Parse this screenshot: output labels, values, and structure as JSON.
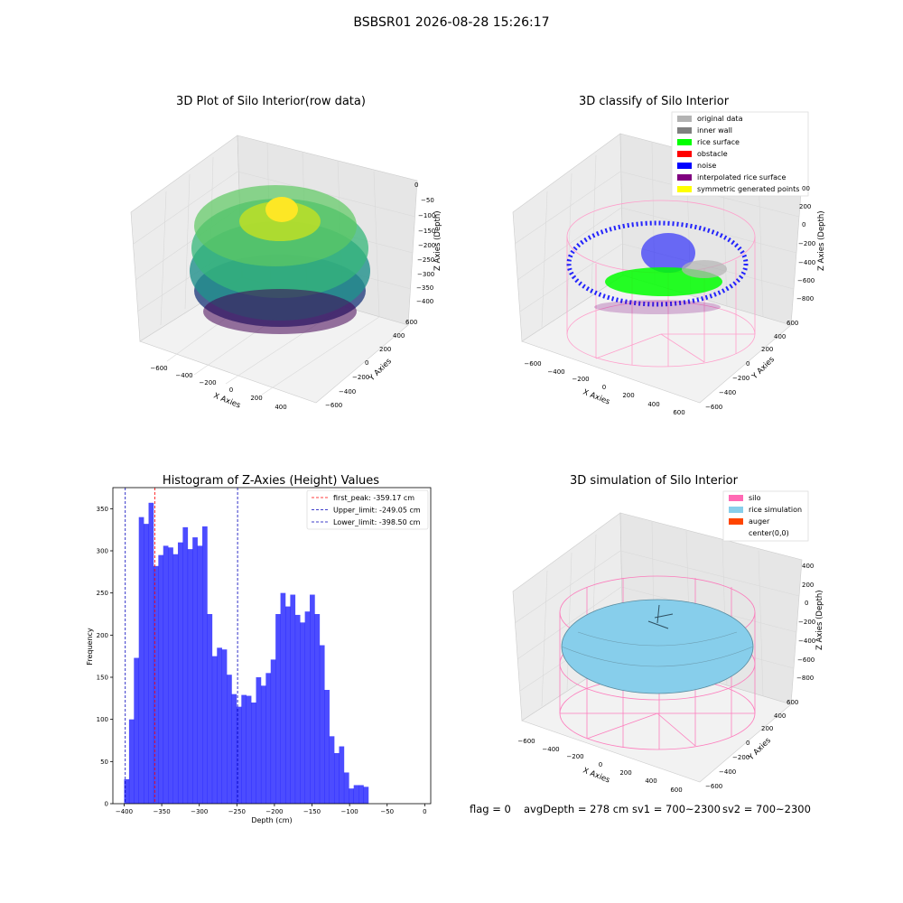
{
  "suptitle": "BSBSR01 2026-08-28 15:26:17",
  "panels": {
    "raw": {
      "title": "3D Plot of Silo Interior(row data)",
      "xlabel": "X Axies",
      "ylabel": "Y Axies",
      "zlabel": "Z Axies (Depth)",
      "xticks": [
        "−600",
        "−400",
        "−200",
        "0",
        "200",
        "400"
      ],
      "yticks": [
        "−600",
        "−400",
        "−200",
        "0",
        "200",
        "400",
        "600"
      ],
      "zticks": [
        "0",
        "−50",
        "−100",
        "−150",
        "−200",
        "−250",
        "−300",
        "−350",
        "−400"
      ]
    },
    "classify": {
      "title": "3D classify of Silo Interior",
      "xlabel": "X Axies",
      "ylabel": "Y Axies",
      "zlabel": "Z Axies (Depth)",
      "xticks": [
        "−600",
        "−400",
        "−200",
        "0",
        "200",
        "400",
        "600"
      ],
      "yticks": [
        "−600",
        "−400",
        "−200",
        "0",
        "200",
        "400",
        "600"
      ],
      "zticks": [
        "200",
        "0",
        "−200",
        "−400",
        "−600",
        "−800"
      ],
      "ztick_partial": "00",
      "legend": [
        {
          "label": "original data",
          "color": "#b3b3b3"
        },
        {
          "label": "inner wall",
          "color": "#808080"
        },
        {
          "label": "rice surface",
          "color": "#00ff00"
        },
        {
          "label": "obstacle",
          "color": "#ff0000"
        },
        {
          "label": "noise",
          "color": "#0000ff"
        },
        {
          "label": "interpolated rice surface",
          "color": "#800080"
        },
        {
          "label": "symmetric generated points",
          "color": "#ffff00"
        }
      ]
    },
    "simulation": {
      "title": "3D simulation of Silo Interior",
      "xlabel": "X Axies",
      "ylabel": "Y Axies",
      "zlabel": "Z Axies (Depth)",
      "xticks": [
        "−600",
        "−400",
        "−200",
        "0",
        "200",
        "400",
        "600"
      ],
      "yticks": [
        "−600",
        "−400",
        "−200",
        "0",
        "200",
        "400",
        "600"
      ],
      "zticks": [
        "400",
        "200",
        "0",
        "−200",
        "−400",
        "−600",
        "−800"
      ],
      "legend": [
        {
          "label": "silo",
          "color": "#ff69b4"
        },
        {
          "label": "rice simulation",
          "color": "#87ceeb"
        },
        {
          "label": "auger",
          "color": "#ff4500"
        },
        {
          "label": "center(0,0)",
          "color": ""
        }
      ]
    }
  },
  "status": {
    "flag": "flag = 0",
    "avg": "avgDepth = 278 cm",
    "sv1": "sv1 = 700~2300",
    "sv2": "sv2 = 700~2300"
  },
  "chart_data": {
    "type": "bar",
    "title": "Histogram of Z-Axies (Height) Values",
    "xlabel": "Depth (cm)",
    "ylabel": "Frequency",
    "xlim": [
      -415,
      8
    ],
    "ylim": [
      0,
      375
    ],
    "xticks": [
      -400,
      -350,
      -300,
      -250,
      -200,
      -150,
      -100,
      -50,
      0
    ],
    "xticklabels": [
      "−400",
      "−350",
      "−300",
      "−250",
      "−200",
      "−150",
      "−100",
      "−50",
      "0"
    ],
    "yticks": [
      0,
      50,
      100,
      150,
      200,
      250,
      300,
      350
    ],
    "bin_start": -400,
    "bin_width": 6.5,
    "values": [
      29,
      100,
      173,
      340,
      332,
      357,
      282,
      295,
      306,
      304,
      296,
      310,
      328,
      302,
      316,
      306,
      329,
      225,
      175,
      185,
      183,
      153,
      130,
      115,
      129,
      128,
      120,
      150,
      140,
      155,
      171,
      225,
      250,
      234,
      248,
      224,
      215,
      228,
      248,
      225,
      188,
      135,
      80,
      60,
      68,
      37,
      18,
      22,
      22,
      20
    ],
    "color": "#0000ff",
    "vlines": [
      {
        "label": "first_peak: -359.17 cm",
        "x": -359.17,
        "color": "#ff0000"
      },
      {
        "label": "Upper_limit: -249.05 cm",
        "x": -249.05,
        "color": "#0000bb"
      },
      {
        "label": "Lower_limit: -398.50 cm",
        "x": -398.5,
        "color": "#0000bb"
      }
    ]
  }
}
